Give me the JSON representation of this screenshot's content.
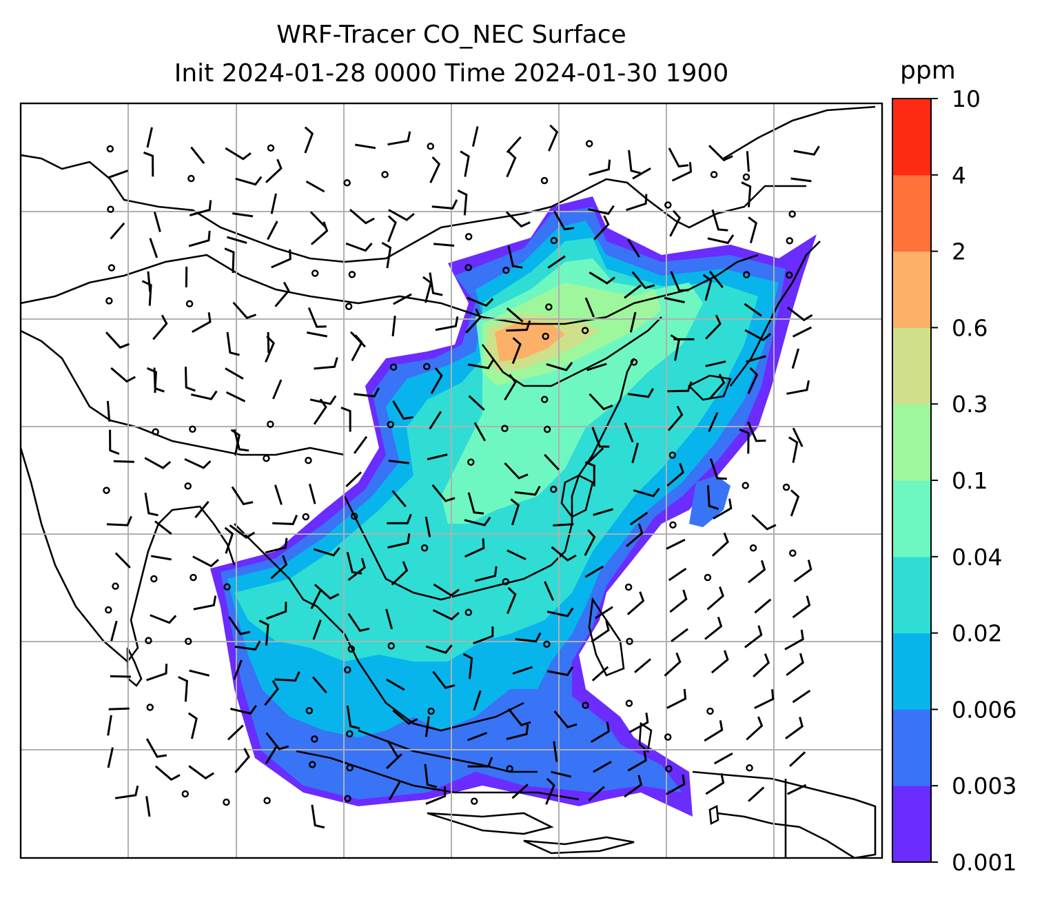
{
  "title": {
    "line1": "WRF-Tracer CO_NEC Surface",
    "line2": "Init 2024-01-28 0000 Time 2024-01-30 1900"
  },
  "colorbar": {
    "units": "ppm",
    "ticks": [
      "0.001",
      "0.003",
      "0.006",
      "0.02",
      "0.04",
      "0.1",
      "0.3",
      "0.6",
      "2",
      "4",
      "10"
    ],
    "colors": [
      "#6a2cff",
      "#3874f5",
      "#08b4ec",
      "#2fddd5",
      "#6ff7c2",
      "#9ef79c",
      "#cfe08a",
      "#fdb168",
      "#ff7239",
      "#ff2a12"
    ]
  },
  "map": {
    "projection_region": "East Asia / Southeast Asia WRF domain",
    "grid": true,
    "field_colors": {
      "background": "#ffffff",
      "coastline": "#000000",
      "gridline": "#b0b0b0"
    }
  }
}
